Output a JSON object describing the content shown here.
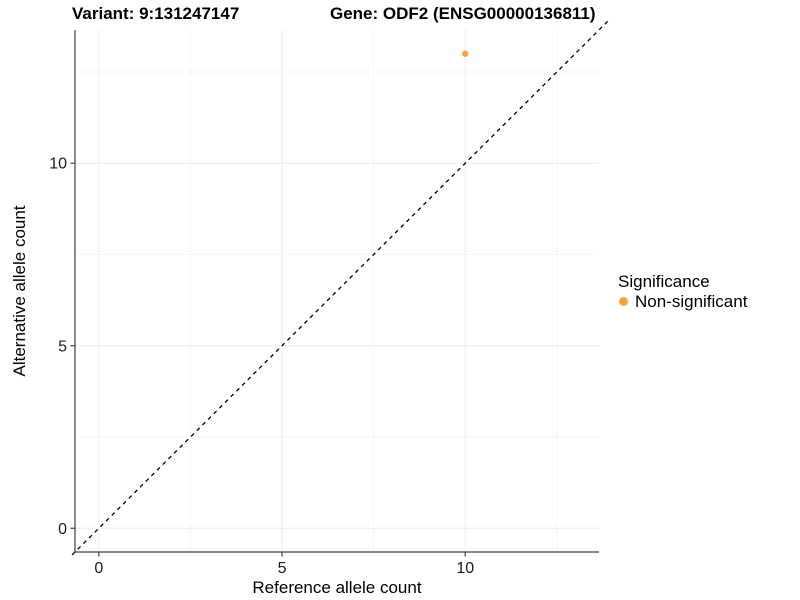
{
  "figure": {
    "background": "#FFFFFF"
  },
  "chart_data": {
    "type": "scatter",
    "titles": {
      "left": "Variant: 9:131247147",
      "right": "Gene: ODF2 (ENSG00000136811)"
    },
    "axes": {
      "x": {
        "label": "Reference allele count",
        "ticks": [
          0,
          5,
          10
        ],
        "minor_gridlines": [
          2.5,
          7.5,
          12.5
        ],
        "range": [
          -0.65,
          13.65
        ]
      },
      "y": {
        "label": "Alternative allele count",
        "ticks": [
          0,
          5,
          10
        ],
        "minor_gridlines": [
          2.5,
          7.5,
          12.5
        ],
        "range": [
          -0.65,
          13.65
        ]
      }
    },
    "grid": true,
    "reference_line": {
      "slope": 1,
      "intercept": 0,
      "style": "dashed",
      "color": "#000000"
    },
    "series": [
      {
        "name": "Non-significant",
        "color": "#FBA338",
        "points": [
          {
            "x": 10,
            "y": 13
          }
        ]
      }
    ],
    "legend": {
      "title": "Significance",
      "position": "right",
      "items": [
        {
          "label": "Non-significant",
          "color": "#FBA338",
          "marker": "circle"
        }
      ]
    },
    "style": {
      "grid_major_color": "#ECECEC",
      "grid_minor_color": "#F5F5F5",
      "axis_color": "#404040",
      "point_radius": 3.2,
      "legend_key_radius": 4.5
    }
  }
}
